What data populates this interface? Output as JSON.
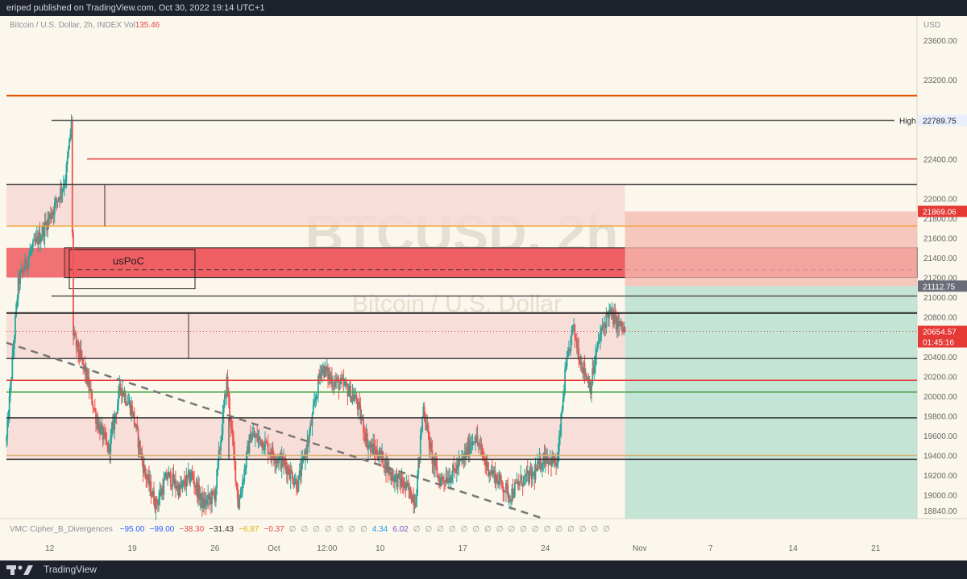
{
  "header": {
    "published_text": "eriped published on TradingView.com, Oct 30, 2022 19:14 UTC+1"
  },
  "symbol_info": {
    "description": "Bitcoin / U.S. Dollar, 2h, INDEX",
    "vol_label": "Vol",
    "vol_value": "135.46"
  },
  "currency_label": "USD",
  "watermark": {
    "symbol": "BTCUSD, 2h",
    "name": "Bitcoin / U.S. Dollar"
  },
  "chart_annotation": "usPoC",
  "indicator": {
    "name": "VMC Cipher_B_Divergences",
    "values": [
      {
        "text": "−95.00",
        "color": "#2962ff"
      },
      {
        "text": "−99.00",
        "color": "#2962ff"
      },
      {
        "text": "−38.30",
        "color": "#e04848"
      },
      {
        "text": "−31.43",
        "color": "#333333"
      },
      {
        "text": "−6.87",
        "color": "#e0b300"
      },
      {
        "text": "−0.37",
        "color": "#e04848"
      },
      {
        "text": "∅",
        "color": "#8c8f99"
      },
      {
        "text": "∅",
        "color": "#8c8f99"
      },
      {
        "text": "∅",
        "color": "#8c8f99"
      },
      {
        "text": "∅",
        "color": "#8c8f99"
      },
      {
        "text": "∅",
        "color": "#8c8f99"
      },
      {
        "text": "∅",
        "color": "#8c8f99"
      },
      {
        "text": "∅",
        "color": "#8c8f99"
      },
      {
        "text": "4.34",
        "color": "#2196f3"
      },
      {
        "text": "6.02",
        "color": "#7b4fd1"
      },
      {
        "text": "∅",
        "color": "#8c8f99"
      },
      {
        "text": "∅",
        "color": "#8c8f99"
      },
      {
        "text": "∅",
        "color": "#8c8f99"
      },
      {
        "text": "∅",
        "color": "#8c8f99"
      },
      {
        "text": "∅",
        "color": "#8c8f99"
      },
      {
        "text": "∅",
        "color": "#8c8f99"
      },
      {
        "text": "∅",
        "color": "#8c8f99"
      },
      {
        "text": "∅",
        "color": "#8c8f99"
      },
      {
        "text": "∅",
        "color": "#8c8f99"
      },
      {
        "text": "∅",
        "color": "#8c8f99"
      },
      {
        "text": "∅",
        "color": "#8c8f99"
      },
      {
        "text": "∅",
        "color": "#8c8f99"
      },
      {
        "text": "∅",
        "color": "#8c8f99"
      },
      {
        "text": "∅",
        "color": "#8c8f99"
      },
      {
        "text": "∅",
        "color": "#8c8f99"
      },
      {
        "text": "∅",
        "color": "#8c8f99"
      },
      {
        "text": "∅",
        "color": "#8c8f99"
      }
    ]
  },
  "footer": {
    "brand": "TradingView"
  },
  "chart_data": {
    "type": "candlestick",
    "symbol": "BTCUSD",
    "interval": "2h",
    "y_axis": {
      "range": [
        18760,
        23780
      ],
      "ticks": [
        18840,
        19000,
        19200,
        19400,
        19600,
        19800,
        20000,
        20200,
        20400,
        20600,
        20800,
        21000,
        21200,
        21400,
        21600,
        21800,
        22000,
        22400,
        23200,
        23600
      ],
      "tick_labels": [
        "18840.00",
        "19000.00",
        "19200.00",
        "19400.00",
        "19600.00",
        "19800.00",
        "20000.00",
        "20200.00",
        "20400.00",
        "20600.00",
        "20800.00",
        "21000.00",
        "21200.00",
        "21400.00",
        "21600.00",
        "21800.00",
        "22000.00",
        "22400.00",
        "23200.00",
        "23600.00"
      ]
    },
    "x_axis": {
      "ticks": [
        {
          "date": "2022-09-12T00:00",
          "label": "12"
        },
        {
          "date": "2022-09-19T00:00",
          "label": "19"
        },
        {
          "date": "2022-09-26T00:00",
          "label": "26"
        },
        {
          "date": "2022-10-01T00:00",
          "label": "Oct"
        },
        {
          "date": "2022-10-05T12:00",
          "label": "12:00"
        },
        {
          "date": "2022-10-10T00:00",
          "label": "10"
        },
        {
          "date": "2022-10-17T00:00",
          "label": "17"
        },
        {
          "date": "2022-10-24T00:00",
          "label": "24"
        },
        {
          "date": "2022-11-01T00:00",
          "label": "Nov"
        },
        {
          "date": "2022-11-07T00:00",
          "label": "7"
        },
        {
          "date": "2022-11-14T00:00",
          "label": "14"
        },
        {
          "date": "2022-11-21T00:00",
          "label": "21"
        }
      ],
      "range": [
        "2022-09-08T08:00",
        "2022-11-24T12:00"
      ]
    },
    "price_path": [
      [
        "2022-09-08T08:00",
        19550
      ],
      [
        "2022-09-09T08:00",
        21150
      ],
      [
        "2022-09-10T08:00",
        21450
      ],
      [
        "2022-09-11T08:00",
        21650
      ],
      [
        "2022-09-12T08:00",
        21900
      ],
      [
        "2022-09-13T08:00",
        22200
      ],
      [
        "2022-09-13T20:00",
        22750
      ],
      [
        "2022-09-14T00:00",
        20600
      ],
      [
        "2022-09-15T00:00",
        20250
      ],
      [
        "2022-09-16T00:00",
        19750
      ],
      [
        "2022-09-17T00:00",
        19450
      ],
      [
        "2022-09-18T00:00",
        20100
      ],
      [
        "2022-09-19T00:00",
        19850
      ],
      [
        "2022-09-20T00:00",
        19250
      ],
      [
        "2022-09-21T00:00",
        18900
      ],
      [
        "2022-09-22T00:00",
        19200
      ],
      [
        "2022-09-23T00:00",
        19050
      ],
      [
        "2022-09-24T00:00",
        19200
      ],
      [
        "2022-09-25T00:00",
        18900
      ],
      [
        "2022-09-26T00:00",
        19000
      ],
      [
        "2022-09-27T00:00",
        20150
      ],
      [
        "2022-09-28T00:00",
        18900
      ],
      [
        "2022-09-29T00:00",
        19600
      ],
      [
        "2022-09-30T00:00",
        19550
      ],
      [
        "2022-10-01T00:00",
        19400
      ],
      [
        "2022-10-02T00:00",
        19300
      ],
      [
        "2022-10-03T00:00",
        19100
      ],
      [
        "2022-10-04T00:00",
        19600
      ],
      [
        "2022-10-05T00:00",
        20300
      ],
      [
        "2022-10-06T00:00",
        20150
      ],
      [
        "2022-10-07T00:00",
        20100
      ],
      [
        "2022-10-08T00:00",
        19950
      ],
      [
        "2022-10-09T00:00",
        19500
      ],
      [
        "2022-10-10T00:00",
        19400
      ],
      [
        "2022-10-11T00:00",
        19200
      ],
      [
        "2022-10-12T00:00",
        19100
      ],
      [
        "2022-10-13T00:00",
        18950
      ],
      [
        "2022-10-13T16:00",
        19900
      ],
      [
        "2022-10-14T08:00",
        19400
      ],
      [
        "2022-10-15T00:00",
        19150
      ],
      [
        "2022-10-16T00:00",
        19200
      ],
      [
        "2022-10-17T00:00",
        19350
      ],
      [
        "2022-10-18T00:00",
        19600
      ],
      [
        "2022-10-19T00:00",
        19300
      ],
      [
        "2022-10-20T00:00",
        19150
      ],
      [
        "2022-10-21T00:00",
        19000
      ],
      [
        "2022-10-22T00:00",
        19150
      ],
      [
        "2022-10-23T00:00",
        19200
      ],
      [
        "2022-10-24T00:00",
        19400
      ],
      [
        "2022-10-25T00:00",
        19300
      ],
      [
        "2022-10-25T16:00",
        20200
      ],
      [
        "2022-10-26T08:00",
        20700
      ],
      [
        "2022-10-27T00:00",
        20350
      ],
      [
        "2022-10-27T20:00",
        20100
      ],
      [
        "2022-10-28T12:00",
        20550
      ],
      [
        "2022-10-29T08:00",
        20850
      ],
      [
        "2022-10-30T00:00",
        20750
      ],
      [
        "2022-10-30T18:00",
        20654.57
      ]
    ],
    "horizontal_levels": [
      {
        "price": 23040,
        "color": "#e65100",
        "label": ""
      },
      {
        "price": 22789.75,
        "color": "#555555",
        "label": "High"
      },
      {
        "price": 22400,
        "color": "#e53935",
        "label": ""
      },
      {
        "price": 22140,
        "color": "#333333",
        "label": ""
      },
      {
        "price": 21720,
        "color": "#f0a030",
        "label": ""
      },
      {
        "price": 21012,
        "color": "#555555",
        "label": ""
      },
      {
        "price": 20840,
        "color": "#222222",
        "label": ""
      },
      {
        "price": 20380,
        "color": "#444444",
        "label": ""
      },
      {
        "price": 20160,
        "color": "#e53935",
        "label": ""
      },
      {
        "price": 20040,
        "color": "#43a047",
        "label": ""
      },
      {
        "price": 19780,
        "color": "#333333",
        "label": ""
      },
      {
        "price": 19400,
        "color": "#d4b070",
        "label": ""
      },
      {
        "price": 19360,
        "color": "#333333",
        "label": ""
      }
    ],
    "zones": [
      {
        "name": "upper-supply-zone",
        "top": 22140,
        "bottom": 21720,
        "color": "#f8d7d4"
      },
      {
        "name": "poc-zone",
        "top": 21500,
        "bottom": 21200,
        "color": "#ef5a5f"
      },
      {
        "name": "mid-supply-zone",
        "top": 20840,
        "bottom": 20380,
        "color": "#f8d7d4"
      },
      {
        "name": "lower-demand-zone",
        "top": 19780,
        "bottom": 19360,
        "color": "#f8d7d4"
      }
    ],
    "position_tool": {
      "type": "short",
      "start": "2022-10-30T18:00",
      "entry": 21112.75,
      "target": 18760,
      "stop": 21869.06
    },
    "trendline": {
      "from": [
        "2022-09-08T08:00",
        20540
      ],
      "to": [
        "2022-10-23T20:00",
        18760
      ],
      "style": "dashed"
    },
    "price_labels": [
      {
        "text": "22789.75",
        "price": 22789.75,
        "bg": "#e9eefc",
        "fg": "#1e222d"
      },
      {
        "text": "21869.06",
        "price": 21869.06,
        "bg": "#e53935",
        "fg": "#ffffff"
      },
      {
        "text": "21112.75",
        "price": 21112.75,
        "bg": "#6a6d78",
        "fg": "#ffffff"
      },
      {
        "text": "20654.57",
        "price": 20654.57,
        "bg": "#e53935",
        "fg": "#ffffff"
      }
    ],
    "countdown": "01:45:16",
    "last_price": 20654.57
  }
}
